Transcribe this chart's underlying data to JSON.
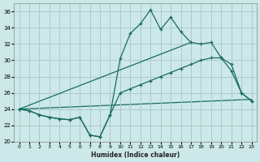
{
  "xlabel": "Humidex (Indice chaleur)",
  "background_color": "#cce8e8",
  "grid_color": "#aacccc",
  "line_color": "#1a6b5e",
  "xlim": [
    -0.5,
    23.5
  ],
  "ylim": [
    20,
    37
  ],
  "yticks": [
    20,
    22,
    24,
    26,
    28,
    30,
    32,
    34,
    36
  ],
  "xticks": [
    0,
    1,
    2,
    3,
    4,
    5,
    6,
    7,
    8,
    9,
    10,
    11,
    12,
    13,
    14,
    15,
    16,
    17,
    18,
    19,
    20,
    21,
    22,
    23
  ],
  "line1_x": [
    0,
    1,
    2,
    3,
    4,
    5,
    6,
    7,
    8,
    9,
    10,
    11,
    12,
    13,
    14,
    15,
    16,
    17,
    18,
    19,
    20,
    21,
    22,
    23
  ],
  "line1_y": [
    24.0,
    23.8,
    23.3,
    23.0,
    22.8,
    22.7,
    23.0,
    20.8,
    20.6,
    23.3,
    30.2,
    33.3,
    34.5,
    36.2,
    33.8,
    35.3,
    33.5,
    32.2,
    32.0,
    32.2,
    30.3,
    28.7,
    26.0,
    25.0
  ],
  "line2_x": [
    0,
    1,
    2,
    3,
    4,
    5,
    6,
    7,
    8,
    9,
    10,
    11,
    12,
    13,
    14,
    15,
    16,
    17,
    18,
    19,
    20,
    21,
    22,
    23
  ],
  "line2_y": [
    24.0,
    23.8,
    23.3,
    23.0,
    22.8,
    22.7,
    23.0,
    20.8,
    20.6,
    23.3,
    26.0,
    26.5,
    27.0,
    27.5,
    28.0,
    28.5,
    29.0,
    29.5,
    30.0,
    30.3,
    30.3,
    29.5,
    26.0,
    25.0
  ],
  "line3_x": [
    0,
    17
  ],
  "line3_y": [
    24.0,
    32.2
  ],
  "line4_x": [
    0,
    23
  ],
  "line4_y": [
    24.0,
    25.2
  ]
}
